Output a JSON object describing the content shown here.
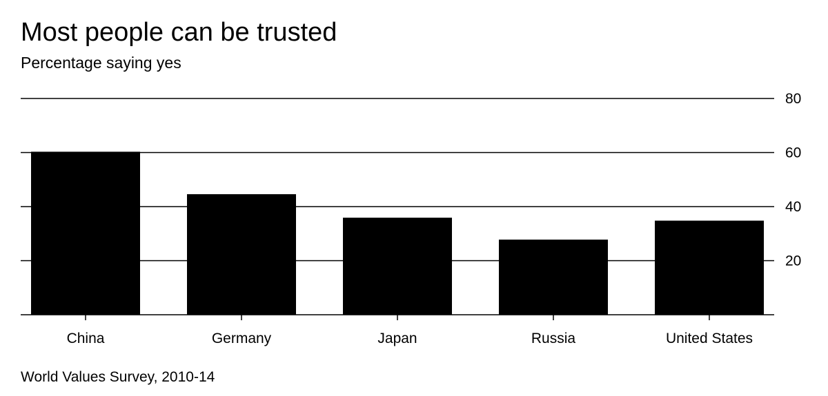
{
  "title": "Most people can be trusted",
  "subtitle": "Percentage saying yes",
  "source": "World Values Survey, 2010-14",
  "colors": {
    "bar": "#000000",
    "gridline": "#000000",
    "text": "#000000",
    "background": "#ffffff"
  },
  "chart_data": {
    "type": "bar",
    "title": "Most people can be trusted",
    "subtitle": "Percentage saying yes",
    "categories": [
      "China",
      "Germany",
      "Japan",
      "Russia",
      "United States"
    ],
    "values": [
      60.3,
      44.6,
      35.9,
      27.8,
      34.8
    ],
    "ylim": [
      0,
      80
    ],
    "yticks": [
      "20",
      "40",
      "60",
      "80"
    ],
    "xlabel": "",
    "ylabel": "",
    "y_axis_side": "right",
    "grid": true
  }
}
